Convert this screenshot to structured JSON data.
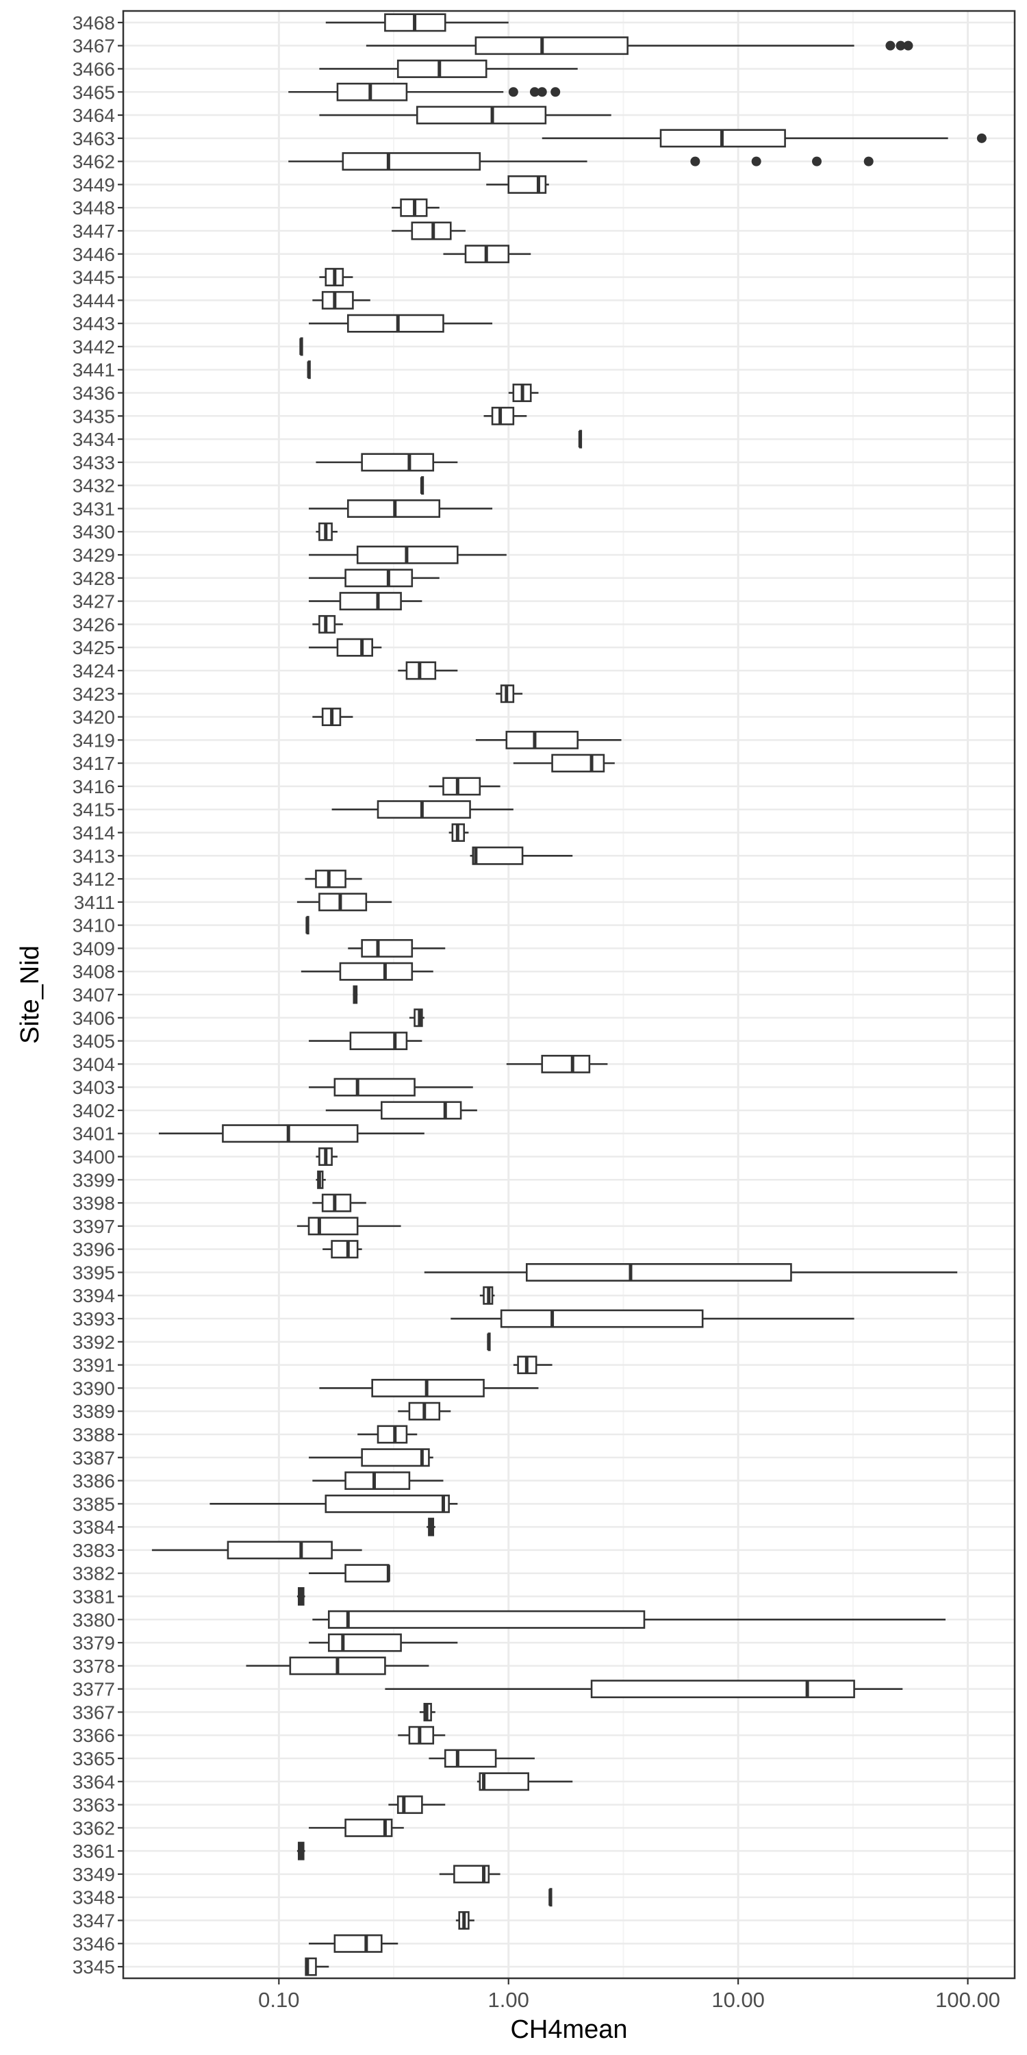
{
  "chart_data": {
    "type": "boxplot",
    "orientation": "horizontal",
    "xlabel": "CH4mean",
    "ylabel": "Site_Nid",
    "x_scale": "log10",
    "xlim": [
      0.021,
      160
    ],
    "x_ticks": [
      {
        "value": 0.1,
        "label": "0.10"
      },
      {
        "value": 1,
        "label": "1.00"
      },
      {
        "value": 10,
        "label": "10.00"
      },
      {
        "value": 100,
        "label": "100.00"
      }
    ],
    "grid": true,
    "theme": "bw",
    "categories": [
      "3468",
      "3467",
      "3466",
      "3465",
      "3464",
      "3463",
      "3462",
      "3449",
      "3448",
      "3447",
      "3446",
      "3445",
      "3444",
      "3443",
      "3442",
      "3441",
      "3436",
      "3435",
      "3434",
      "3433",
      "3432",
      "3431",
      "3430",
      "3429",
      "3428",
      "3427",
      "3426",
      "3425",
      "3424",
      "3423",
      "3420",
      "3419",
      "3417",
      "3416",
      "3415",
      "3414",
      "3413",
      "3412",
      "3411",
      "3410",
      "3409",
      "3408",
      "3407",
      "3406",
      "3405",
      "3404",
      "3403",
      "3402",
      "3401",
      "3400",
      "3399",
      "3398",
      "3397",
      "3396",
      "3395",
      "3394",
      "3393",
      "3392",
      "3391",
      "3390",
      "3389",
      "3388",
      "3387",
      "3386",
      "3385",
      "3384",
      "3383",
      "3382",
      "3381",
      "3380",
      "3379",
      "3378",
      "3377",
      "3367",
      "3366",
      "3365",
      "3364",
      "3363",
      "3362",
      "3361",
      "3349",
      "3348",
      "3347",
      "3346",
      "3345"
    ],
    "boxes": [
      {
        "site": "3468",
        "min": 0.16,
        "q1": 0.29,
        "median": 0.39,
        "q3": 0.53,
        "max": 1.0,
        "outliers": []
      },
      {
        "site": "3467",
        "min": 0.24,
        "q1": 0.72,
        "median": 1.4,
        "q3": 3.3,
        "max": 32,
        "outliers": [
          46,
          51,
          55
        ]
      },
      {
        "site": "3466",
        "min": 0.15,
        "q1": 0.33,
        "median": 0.5,
        "q3": 0.8,
        "max": 2.0,
        "outliers": []
      },
      {
        "site": "3465",
        "min": 0.11,
        "q1": 0.18,
        "median": 0.25,
        "q3": 0.36,
        "max": 0.95,
        "outliers": [
          1.05,
          1.3,
          1.4,
          1.6
        ]
      },
      {
        "site": "3464",
        "min": 0.15,
        "q1": 0.4,
        "median": 0.85,
        "q3": 1.45,
        "max": 2.8,
        "outliers": []
      },
      {
        "site": "3463",
        "min": 1.4,
        "q1": 4.6,
        "median": 8.5,
        "q3": 16,
        "max": 82,
        "outliers": [
          115
        ]
      },
      {
        "site": "3462",
        "min": 0.11,
        "q1": 0.19,
        "median": 0.3,
        "q3": 0.75,
        "max": 2.2,
        "outliers": [
          6.5,
          12,
          22,
          37
        ]
      },
      {
        "site": "3449",
        "min": 0.8,
        "q1": 1.0,
        "median": 1.35,
        "q3": 1.45,
        "max": 1.5,
        "outliers": []
      },
      {
        "site": "3448",
        "min": 0.31,
        "q1": 0.34,
        "median": 0.39,
        "q3": 0.44,
        "max": 0.5,
        "outliers": []
      },
      {
        "site": "3447",
        "min": 0.31,
        "q1": 0.38,
        "median": 0.47,
        "q3": 0.56,
        "max": 0.65,
        "outliers": []
      },
      {
        "site": "3446",
        "min": 0.52,
        "q1": 0.65,
        "median": 0.8,
        "q3": 1.0,
        "max": 1.25,
        "outliers": []
      },
      {
        "site": "3445",
        "min": 0.15,
        "q1": 0.16,
        "median": 0.175,
        "q3": 0.19,
        "max": 0.21,
        "outliers": []
      },
      {
        "site": "3444",
        "min": 0.14,
        "q1": 0.155,
        "median": 0.175,
        "q3": 0.21,
        "max": 0.25,
        "outliers": []
      },
      {
        "site": "3443",
        "min": 0.135,
        "q1": 0.2,
        "median": 0.33,
        "q3": 0.52,
        "max": 0.85,
        "outliers": []
      },
      {
        "site": "3442",
        "min": 0.125,
        "q1": 0.125,
        "median": 0.125,
        "q3": 0.125,
        "max": 0.125,
        "outliers": []
      },
      {
        "site": "3441",
        "min": 0.135,
        "q1": 0.135,
        "median": 0.135,
        "q3": 0.135,
        "max": 0.135,
        "outliers": []
      },
      {
        "site": "3436",
        "min": 1.0,
        "q1": 1.05,
        "median": 1.15,
        "q3": 1.25,
        "max": 1.35,
        "outliers": []
      },
      {
        "site": "3435",
        "min": 0.78,
        "q1": 0.85,
        "median": 0.92,
        "q3": 1.05,
        "max": 1.2,
        "outliers": []
      },
      {
        "site": "3434",
        "min": 2.05,
        "q1": 2.05,
        "median": 2.05,
        "q3": 2.05,
        "max": 2.05,
        "outliers": []
      },
      {
        "site": "3433",
        "min": 0.145,
        "q1": 0.23,
        "median": 0.37,
        "q3": 0.47,
        "max": 0.6,
        "outliers": []
      },
      {
        "site": "3432",
        "min": 0.42,
        "q1": 0.42,
        "median": 0.42,
        "q3": 0.42,
        "max": 0.42,
        "outliers": []
      },
      {
        "site": "3431",
        "min": 0.135,
        "q1": 0.2,
        "median": 0.32,
        "q3": 0.5,
        "max": 0.85,
        "outliers": []
      },
      {
        "site": "3430",
        "min": 0.145,
        "q1": 0.15,
        "median": 0.16,
        "q3": 0.17,
        "max": 0.18,
        "outliers": []
      },
      {
        "site": "3429",
        "min": 0.135,
        "q1": 0.22,
        "median": 0.36,
        "q3": 0.6,
        "max": 0.98,
        "outliers": []
      },
      {
        "site": "3428",
        "min": 0.135,
        "q1": 0.195,
        "median": 0.3,
        "q3": 0.38,
        "max": 0.5,
        "outliers": []
      },
      {
        "site": "3427",
        "min": 0.135,
        "q1": 0.185,
        "median": 0.27,
        "q3": 0.34,
        "max": 0.42,
        "outliers": []
      },
      {
        "site": "3426",
        "min": 0.14,
        "q1": 0.15,
        "median": 0.16,
        "q3": 0.175,
        "max": 0.19,
        "outliers": []
      },
      {
        "site": "3425",
        "min": 0.135,
        "q1": 0.18,
        "median": 0.23,
        "q3": 0.255,
        "max": 0.28,
        "outliers": []
      },
      {
        "site": "3424",
        "min": 0.33,
        "q1": 0.36,
        "median": 0.41,
        "q3": 0.48,
        "max": 0.6,
        "outliers": []
      },
      {
        "site": "3423",
        "min": 0.88,
        "q1": 0.93,
        "median": 0.98,
        "q3": 1.05,
        "max": 1.15,
        "outliers": []
      },
      {
        "site": "3420",
        "min": 0.14,
        "q1": 0.155,
        "median": 0.17,
        "q3": 0.185,
        "max": 0.21,
        "outliers": []
      },
      {
        "site": "3419",
        "min": 0.72,
        "q1": 0.98,
        "median": 1.3,
        "q3": 2.0,
        "max": 3.1,
        "outliers": []
      },
      {
        "site": "3417",
        "min": 1.05,
        "q1": 1.55,
        "median": 2.3,
        "q3": 2.6,
        "max": 2.9,
        "outliers": []
      },
      {
        "site": "3416",
        "min": 0.45,
        "q1": 0.52,
        "median": 0.6,
        "q3": 0.75,
        "max": 0.92,
        "outliers": []
      },
      {
        "site": "3415",
        "min": 0.17,
        "q1": 0.27,
        "median": 0.42,
        "q3": 0.68,
        "max": 1.05,
        "outliers": []
      },
      {
        "site": "3414",
        "min": 0.55,
        "q1": 0.57,
        "median": 0.6,
        "q3": 0.64,
        "max": 0.67,
        "outliers": []
      },
      {
        "site": "3413",
        "min": 0.68,
        "q1": 0.7,
        "median": 0.72,
        "q3": 1.15,
        "max": 1.9,
        "outliers": []
      },
      {
        "site": "3412",
        "min": 0.13,
        "q1": 0.145,
        "median": 0.165,
        "q3": 0.195,
        "max": 0.23,
        "outliers": []
      },
      {
        "site": "3411",
        "min": 0.12,
        "q1": 0.15,
        "median": 0.185,
        "q3": 0.24,
        "max": 0.31,
        "outliers": []
      },
      {
        "site": "3410",
        "min": 0.133,
        "q1": 0.133,
        "median": 0.133,
        "q3": 0.133,
        "max": 0.133,
        "outliers": []
      },
      {
        "site": "3409",
        "min": 0.2,
        "q1": 0.23,
        "median": 0.27,
        "q3": 0.38,
        "max": 0.53,
        "outliers": []
      },
      {
        "site": "3408",
        "min": 0.125,
        "q1": 0.185,
        "median": 0.29,
        "q3": 0.38,
        "max": 0.47,
        "outliers": []
      },
      {
        "site": "3407",
        "min": 0.21,
        "q1": 0.212,
        "median": 0.215,
        "q3": 0.218,
        "max": 0.22,
        "outliers": []
      },
      {
        "site": "3406",
        "min": 0.37,
        "q1": 0.39,
        "median": 0.41,
        "q3": 0.42,
        "max": 0.43,
        "outliers": []
      },
      {
        "site": "3405",
        "min": 0.135,
        "q1": 0.205,
        "median": 0.32,
        "q3": 0.36,
        "max": 0.42,
        "outliers": []
      },
      {
        "site": "3404",
        "min": 0.98,
        "q1": 1.4,
        "median": 1.9,
        "q3": 2.25,
        "max": 2.7,
        "outliers": []
      },
      {
        "site": "3403",
        "min": 0.135,
        "q1": 0.175,
        "median": 0.22,
        "q3": 0.39,
        "max": 0.7,
        "outliers": []
      },
      {
        "site": "3402",
        "min": 0.16,
        "q1": 0.28,
        "median": 0.53,
        "q3": 0.62,
        "max": 0.73,
        "outliers": []
      },
      {
        "site": "3401",
        "min": 0.03,
        "q1": 0.057,
        "median": 0.11,
        "q3": 0.22,
        "max": 0.43,
        "outliers": []
      },
      {
        "site": "3400",
        "min": 0.145,
        "q1": 0.15,
        "median": 0.16,
        "q3": 0.17,
        "max": 0.18,
        "outliers": []
      },
      {
        "site": "3399",
        "min": 0.145,
        "q1": 0.148,
        "median": 0.15,
        "q3": 0.155,
        "max": 0.16,
        "outliers": []
      },
      {
        "site": "3398",
        "min": 0.14,
        "q1": 0.155,
        "median": 0.175,
        "q3": 0.205,
        "max": 0.24,
        "outliers": []
      },
      {
        "site": "3397",
        "min": 0.12,
        "q1": 0.135,
        "median": 0.15,
        "q3": 0.22,
        "max": 0.34,
        "outliers": []
      },
      {
        "site": "3396",
        "min": 0.155,
        "q1": 0.17,
        "median": 0.2,
        "q3": 0.22,
        "max": 0.23,
        "outliers": []
      },
      {
        "site": "3395",
        "min": 0.43,
        "q1": 1.2,
        "median": 3.4,
        "q3": 17,
        "max": 90,
        "outliers": []
      },
      {
        "site": "3394",
        "min": 0.75,
        "q1": 0.78,
        "median": 0.82,
        "q3": 0.85,
        "max": 0.87,
        "outliers": []
      },
      {
        "site": "3393",
        "min": 0.56,
        "q1": 0.93,
        "median": 1.55,
        "q3": 7.0,
        "max": 32,
        "outliers": []
      },
      {
        "site": "3392",
        "min": 0.82,
        "q1": 0.82,
        "median": 0.82,
        "q3": 0.82,
        "max": 0.82,
        "outliers": []
      },
      {
        "site": "3391",
        "min": 1.05,
        "q1": 1.1,
        "median": 1.2,
        "q3": 1.32,
        "max": 1.55,
        "outliers": []
      },
      {
        "site": "3390",
        "min": 0.15,
        "q1": 0.255,
        "median": 0.44,
        "q3": 0.78,
        "max": 1.35,
        "outliers": []
      },
      {
        "site": "3389",
        "min": 0.33,
        "q1": 0.37,
        "median": 0.43,
        "q3": 0.5,
        "max": 0.56,
        "outliers": []
      },
      {
        "site": "3388",
        "min": 0.22,
        "q1": 0.27,
        "median": 0.32,
        "q3": 0.36,
        "max": 0.4,
        "outliers": []
      },
      {
        "site": "3387",
        "min": 0.135,
        "q1": 0.23,
        "median": 0.42,
        "q3": 0.45,
        "max": 0.47,
        "outliers": []
      },
      {
        "site": "3386",
        "min": 0.14,
        "q1": 0.195,
        "median": 0.26,
        "q3": 0.37,
        "max": 0.52,
        "outliers": []
      },
      {
        "site": "3385",
        "min": 0.05,
        "q1": 0.16,
        "median": 0.52,
        "q3": 0.55,
        "max": 0.6,
        "outliers": []
      },
      {
        "site": "3384",
        "min": 0.44,
        "q1": 0.45,
        "median": 0.46,
        "q3": 0.47,
        "max": 0.48,
        "outliers": []
      },
      {
        "site": "3383",
        "min": 0.028,
        "q1": 0.06,
        "median": 0.125,
        "q3": 0.17,
        "max": 0.23,
        "outliers": []
      },
      {
        "site": "3382",
        "min": 0.135,
        "q1": 0.195,
        "median": 0.3,
        "q3": 0.3,
        "max": 0.3,
        "outliers": []
      },
      {
        "site": "3381",
        "min": 0.12,
        "q1": 0.122,
        "median": 0.125,
        "q3": 0.128,
        "max": 0.13,
        "outliers": []
      },
      {
        "site": "3380",
        "min": 0.14,
        "q1": 0.165,
        "median": 0.2,
        "q3": 3.9,
        "max": 80,
        "outliers": []
      },
      {
        "site": "3379",
        "min": 0.135,
        "q1": 0.165,
        "median": 0.19,
        "q3": 0.34,
        "max": 0.6,
        "outliers": []
      },
      {
        "site": "3378",
        "min": 0.072,
        "q1": 0.112,
        "median": 0.18,
        "q3": 0.29,
        "max": 0.45,
        "outliers": []
      },
      {
        "site": "3377",
        "min": 0.29,
        "q1": 2.3,
        "median": 20,
        "q3": 32,
        "max": 52,
        "outliers": []
      },
      {
        "site": "3367",
        "min": 0.41,
        "q1": 0.43,
        "median": 0.44,
        "q3": 0.46,
        "max": 0.48,
        "outliers": []
      },
      {
        "site": "3366",
        "min": 0.33,
        "q1": 0.37,
        "median": 0.41,
        "q3": 0.47,
        "max": 0.53,
        "outliers": []
      },
      {
        "site": "3365",
        "min": 0.45,
        "q1": 0.53,
        "median": 0.6,
        "q3": 0.88,
        "max": 1.3,
        "outliers": []
      },
      {
        "site": "3364",
        "min": 0.73,
        "q1": 0.75,
        "median": 0.78,
        "q3": 1.22,
        "max": 1.9,
        "outliers": []
      },
      {
        "site": "3363",
        "min": 0.3,
        "q1": 0.33,
        "median": 0.35,
        "q3": 0.42,
        "max": 0.53,
        "outliers": []
      },
      {
        "site": "3362",
        "min": 0.135,
        "q1": 0.195,
        "median": 0.29,
        "q3": 0.31,
        "max": 0.35,
        "outliers": []
      },
      {
        "site": "3361",
        "min": 0.12,
        "q1": 0.122,
        "median": 0.125,
        "q3": 0.128,
        "max": 0.13,
        "outliers": []
      },
      {
        "site": "3349",
        "min": 0.5,
        "q1": 0.58,
        "median": 0.78,
        "q3": 0.82,
        "max": 0.92,
        "outliers": []
      },
      {
        "site": "3348",
        "min": 1.52,
        "q1": 1.52,
        "median": 1.52,
        "q3": 1.52,
        "max": 1.52,
        "outliers": []
      },
      {
        "site": "3347",
        "min": 0.59,
        "q1": 0.61,
        "median": 0.64,
        "q3": 0.67,
        "max": 0.71,
        "outliers": []
      },
      {
        "site": "3346",
        "min": 0.135,
        "q1": 0.175,
        "median": 0.24,
        "q3": 0.28,
        "max": 0.33,
        "outliers": []
      },
      {
        "site": "3345",
        "min": 0.13,
        "q1": 0.131,
        "median": 0.133,
        "q3": 0.145,
        "max": 0.165,
        "outliers": []
      }
    ]
  },
  "colors": {
    "background": "#ffffff",
    "grid_major": "#ebebeb",
    "grid_minor": "#f4f4f4",
    "panel_border": "#333333",
    "box_line": "#333333",
    "box_fill": "#ffffff",
    "outlier": "#333333",
    "tick_label": "#4d4d4d",
    "axis_title": "#000000"
  }
}
